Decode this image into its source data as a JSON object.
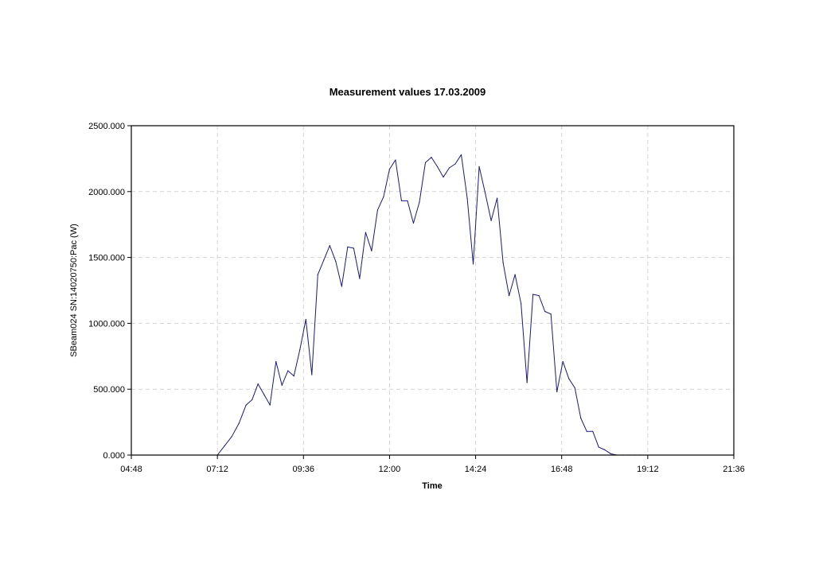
{
  "chart_data": {
    "type": "line",
    "title": "Measurement values 17.03.2009",
    "xlabel": "Time",
    "ylabel": "SBeam024 SN:14020750:Pac (W)",
    "xlim": [
      "04:48",
      "21:36"
    ],
    "ylim": [
      0,
      2500
    ],
    "x_ticks": [
      "04:48",
      "07:12",
      "09:36",
      "12:00",
      "14:24",
      "16:48",
      "19:12",
      "21:36"
    ],
    "y_ticks": [
      "0.000",
      "500.000",
      "1000.000",
      "1500.000",
      "2000.000",
      "2500.000"
    ],
    "grid": true,
    "legend": "none",
    "series": [
      {
        "color": "#1a1a78",
        "x": [
          "07:12",
          "07:24",
          "07:36",
          "07:48",
          "08:00",
          "08:10",
          "08:20",
          "08:30",
          "08:40",
          "08:50",
          "09:00",
          "09:10",
          "09:20",
          "09:30",
          "09:40",
          "09:50",
          "10:00",
          "10:10",
          "10:20",
          "10:30",
          "10:40",
          "10:50",
          "11:00",
          "11:10",
          "11:20",
          "11:30",
          "11:40",
          "11:50",
          "12:00",
          "12:10",
          "12:20",
          "12:30",
          "12:40",
          "12:50",
          "13:00",
          "13:10",
          "13:20",
          "13:30",
          "13:40",
          "13:50",
          "14:00",
          "14:10",
          "14:20",
          "14:30",
          "14:40",
          "14:50",
          "15:00",
          "15:10",
          "15:20",
          "15:30",
          "15:40",
          "15:50",
          "16:00",
          "16:10",
          "16:20",
          "16:30",
          "16:40",
          "16:50",
          "17:00",
          "17:10",
          "17:20",
          "17:30",
          "17:40",
          "17:50",
          "18:00",
          "18:10",
          "18:20",
          "18:30",
          "18:40",
          "18:50",
          "19:00"
        ],
        "y": [
          0,
          70,
          140,
          240,
          380,
          420,
          540,
          460,
          380,
          710,
          530,
          640,
          600,
          800,
          1030,
          610,
          1370,
          1480,
          1590,
          1470,
          1280,
          1580,
          1570,
          1340,
          1690,
          1550,
          1860,
          1960,
          2170,
          2240,
          1930,
          1930,
          1760,
          1920,
          2220,
          2260,
          2190,
          2110,
          2180,
          2210,
          2280,
          1950,
          1450,
          2190,
          1990,
          1780,
          1950,
          1460,
          1210,
          1370,
          1150,
          550,
          1220,
          1210,
          1090,
          1070,
          480,
          710,
          580,
          510,
          280,
          180,
          180,
          60,
          40,
          10,
          0,
          0,
          0,
          0,
          0
        ]
      }
    ]
  }
}
